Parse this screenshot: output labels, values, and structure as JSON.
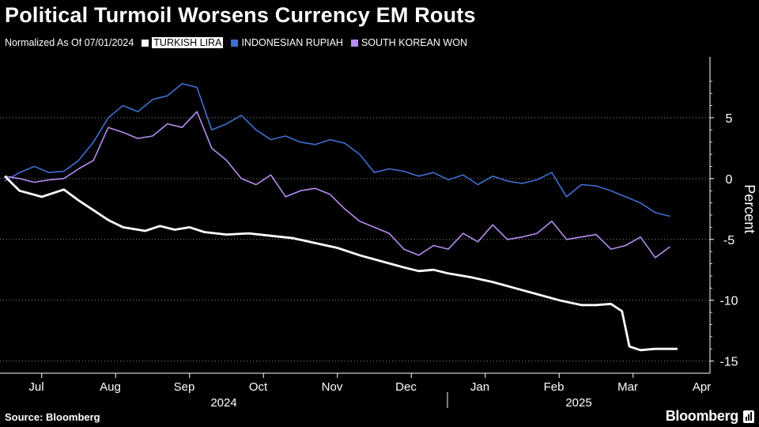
{
  "title": "Political Turmoil Worsens Currency EM Routs",
  "subtitle": "Normalized As Of 07/01/2024",
  "source": "Source: Bloomberg",
  "brand": "Bloomberg",
  "colors": {
    "background": "#000000",
    "turkish_lira": "#ffffff",
    "indonesian_rupiah": "#3f6fd1",
    "south_korean_won": "#b58df0",
    "grid": "#ffffff"
  },
  "chart_data": {
    "type": "line",
    "ylabel": "Percent",
    "ylim": [
      -16,
      10
    ],
    "yticks": [
      5,
      0,
      -5,
      -10,
      -15
    ],
    "y_axis_side": "right",
    "grid": "dotted horizontal",
    "legend_position": "top-left",
    "x_months": [
      "Jul",
      "Aug",
      "Sep",
      "Oct",
      "Nov",
      "Dec",
      "Jan",
      "Feb",
      "Mar",
      "Apr"
    ],
    "x_years": [
      "2024",
      "2025"
    ],
    "x_unit": "months since 07/01/2024",
    "series": [
      {
        "name": "TURKISH LIRA",
        "key": "turkish_lira",
        "x": [
          0,
          0.2,
          0.5,
          0.8,
          1.0,
          1.2,
          1.4,
          1.6,
          1.9,
          2.1,
          2.3,
          2.5,
          2.7,
          3.0,
          3.3,
          3.6,
          3.9,
          4.2,
          4.5,
          4.8,
          5.1,
          5.4,
          5.6,
          5.8,
          6.0,
          6.3,
          6.6,
          6.9,
          7.2,
          7.5,
          7.8,
          8.0,
          8.2,
          8.35,
          8.45,
          8.6,
          8.8,
          9.0,
          9.1
        ],
        "values": [
          0.2,
          -1.0,
          -1.5,
          -0.9,
          -1.8,
          -2.6,
          -3.4,
          -4.0,
          -4.3,
          -3.9,
          -4.2,
          -4.0,
          -4.4,
          -4.6,
          -4.5,
          -4.7,
          -4.9,
          -5.3,
          -5.7,
          -6.3,
          -6.8,
          -7.3,
          -7.6,
          -7.5,
          -7.8,
          -8.1,
          -8.5,
          -9.0,
          -9.5,
          -10.0,
          -10.4,
          -10.4,
          -10.3,
          -10.9,
          -13.8,
          -14.1,
          -14.0,
          -14.0,
          -14.0
        ]
      },
      {
        "name": "INDONESIAN RUPIAH",
        "key": "indonesian_rupiah",
        "x": [
          0,
          0.2,
          0.4,
          0.6,
          0.8,
          1.0,
          1.2,
          1.4,
          1.6,
          1.8,
          2.0,
          2.2,
          2.4,
          2.6,
          2.8,
          3.0,
          3.2,
          3.4,
          3.6,
          3.8,
          4.0,
          4.2,
          4.4,
          4.6,
          4.8,
          5.0,
          5.2,
          5.4,
          5.6,
          5.8,
          6.0,
          6.2,
          6.4,
          6.6,
          6.8,
          7.0,
          7.2,
          7.4,
          7.6,
          7.8,
          8.0,
          8.2,
          8.4,
          8.6,
          8.8,
          9.0
        ],
        "values": [
          -0.2,
          0.5,
          1.0,
          0.5,
          0.6,
          1.5,
          3.0,
          5.0,
          6.0,
          5.5,
          6.5,
          6.8,
          7.8,
          7.5,
          4.0,
          4.5,
          5.2,
          4.0,
          3.2,
          3.5,
          3.0,
          2.8,
          3.2,
          2.9,
          2.0,
          0.5,
          0.8,
          0.6,
          0.2,
          0.5,
          -0.1,
          0.3,
          -0.5,
          0.2,
          -0.2,
          -0.4,
          -0.1,
          0.5,
          -1.5,
          -0.5,
          -0.6,
          -1.0,
          -1.5,
          -2.0,
          -2.8,
          -3.1
        ]
      },
      {
        "name": "SOUTH KOREAN WON",
        "key": "south_korean_won",
        "x": [
          0,
          0.2,
          0.4,
          0.6,
          0.8,
          1.0,
          1.2,
          1.4,
          1.6,
          1.8,
          2.0,
          2.2,
          2.4,
          2.6,
          2.8,
          3.0,
          3.2,
          3.4,
          3.6,
          3.8,
          4.0,
          4.2,
          4.4,
          4.6,
          4.8,
          5.0,
          5.2,
          5.4,
          5.6,
          5.8,
          6.0,
          6.2,
          6.4,
          6.6,
          6.8,
          7.0,
          7.2,
          7.4,
          7.6,
          7.8,
          8.0,
          8.2,
          8.4,
          8.6,
          8.8,
          9.0
        ],
        "values": [
          0.2,
          0.0,
          -0.3,
          -0.1,
          0.0,
          0.8,
          1.5,
          4.2,
          3.8,
          3.3,
          3.5,
          4.5,
          4.2,
          5.5,
          2.5,
          1.5,
          0.0,
          -0.5,
          0.3,
          -1.5,
          -1.0,
          -0.8,
          -1.3,
          -2.5,
          -3.5,
          -4.0,
          -4.5,
          -5.8,
          -6.3,
          -5.5,
          -5.8,
          -4.5,
          -5.2,
          -3.8,
          -5.0,
          -4.8,
          -4.5,
          -3.5,
          -5.0,
          -4.8,
          -4.6,
          -5.8,
          -5.5,
          -4.8,
          -6.5,
          -5.6
        ]
      }
    ]
  }
}
